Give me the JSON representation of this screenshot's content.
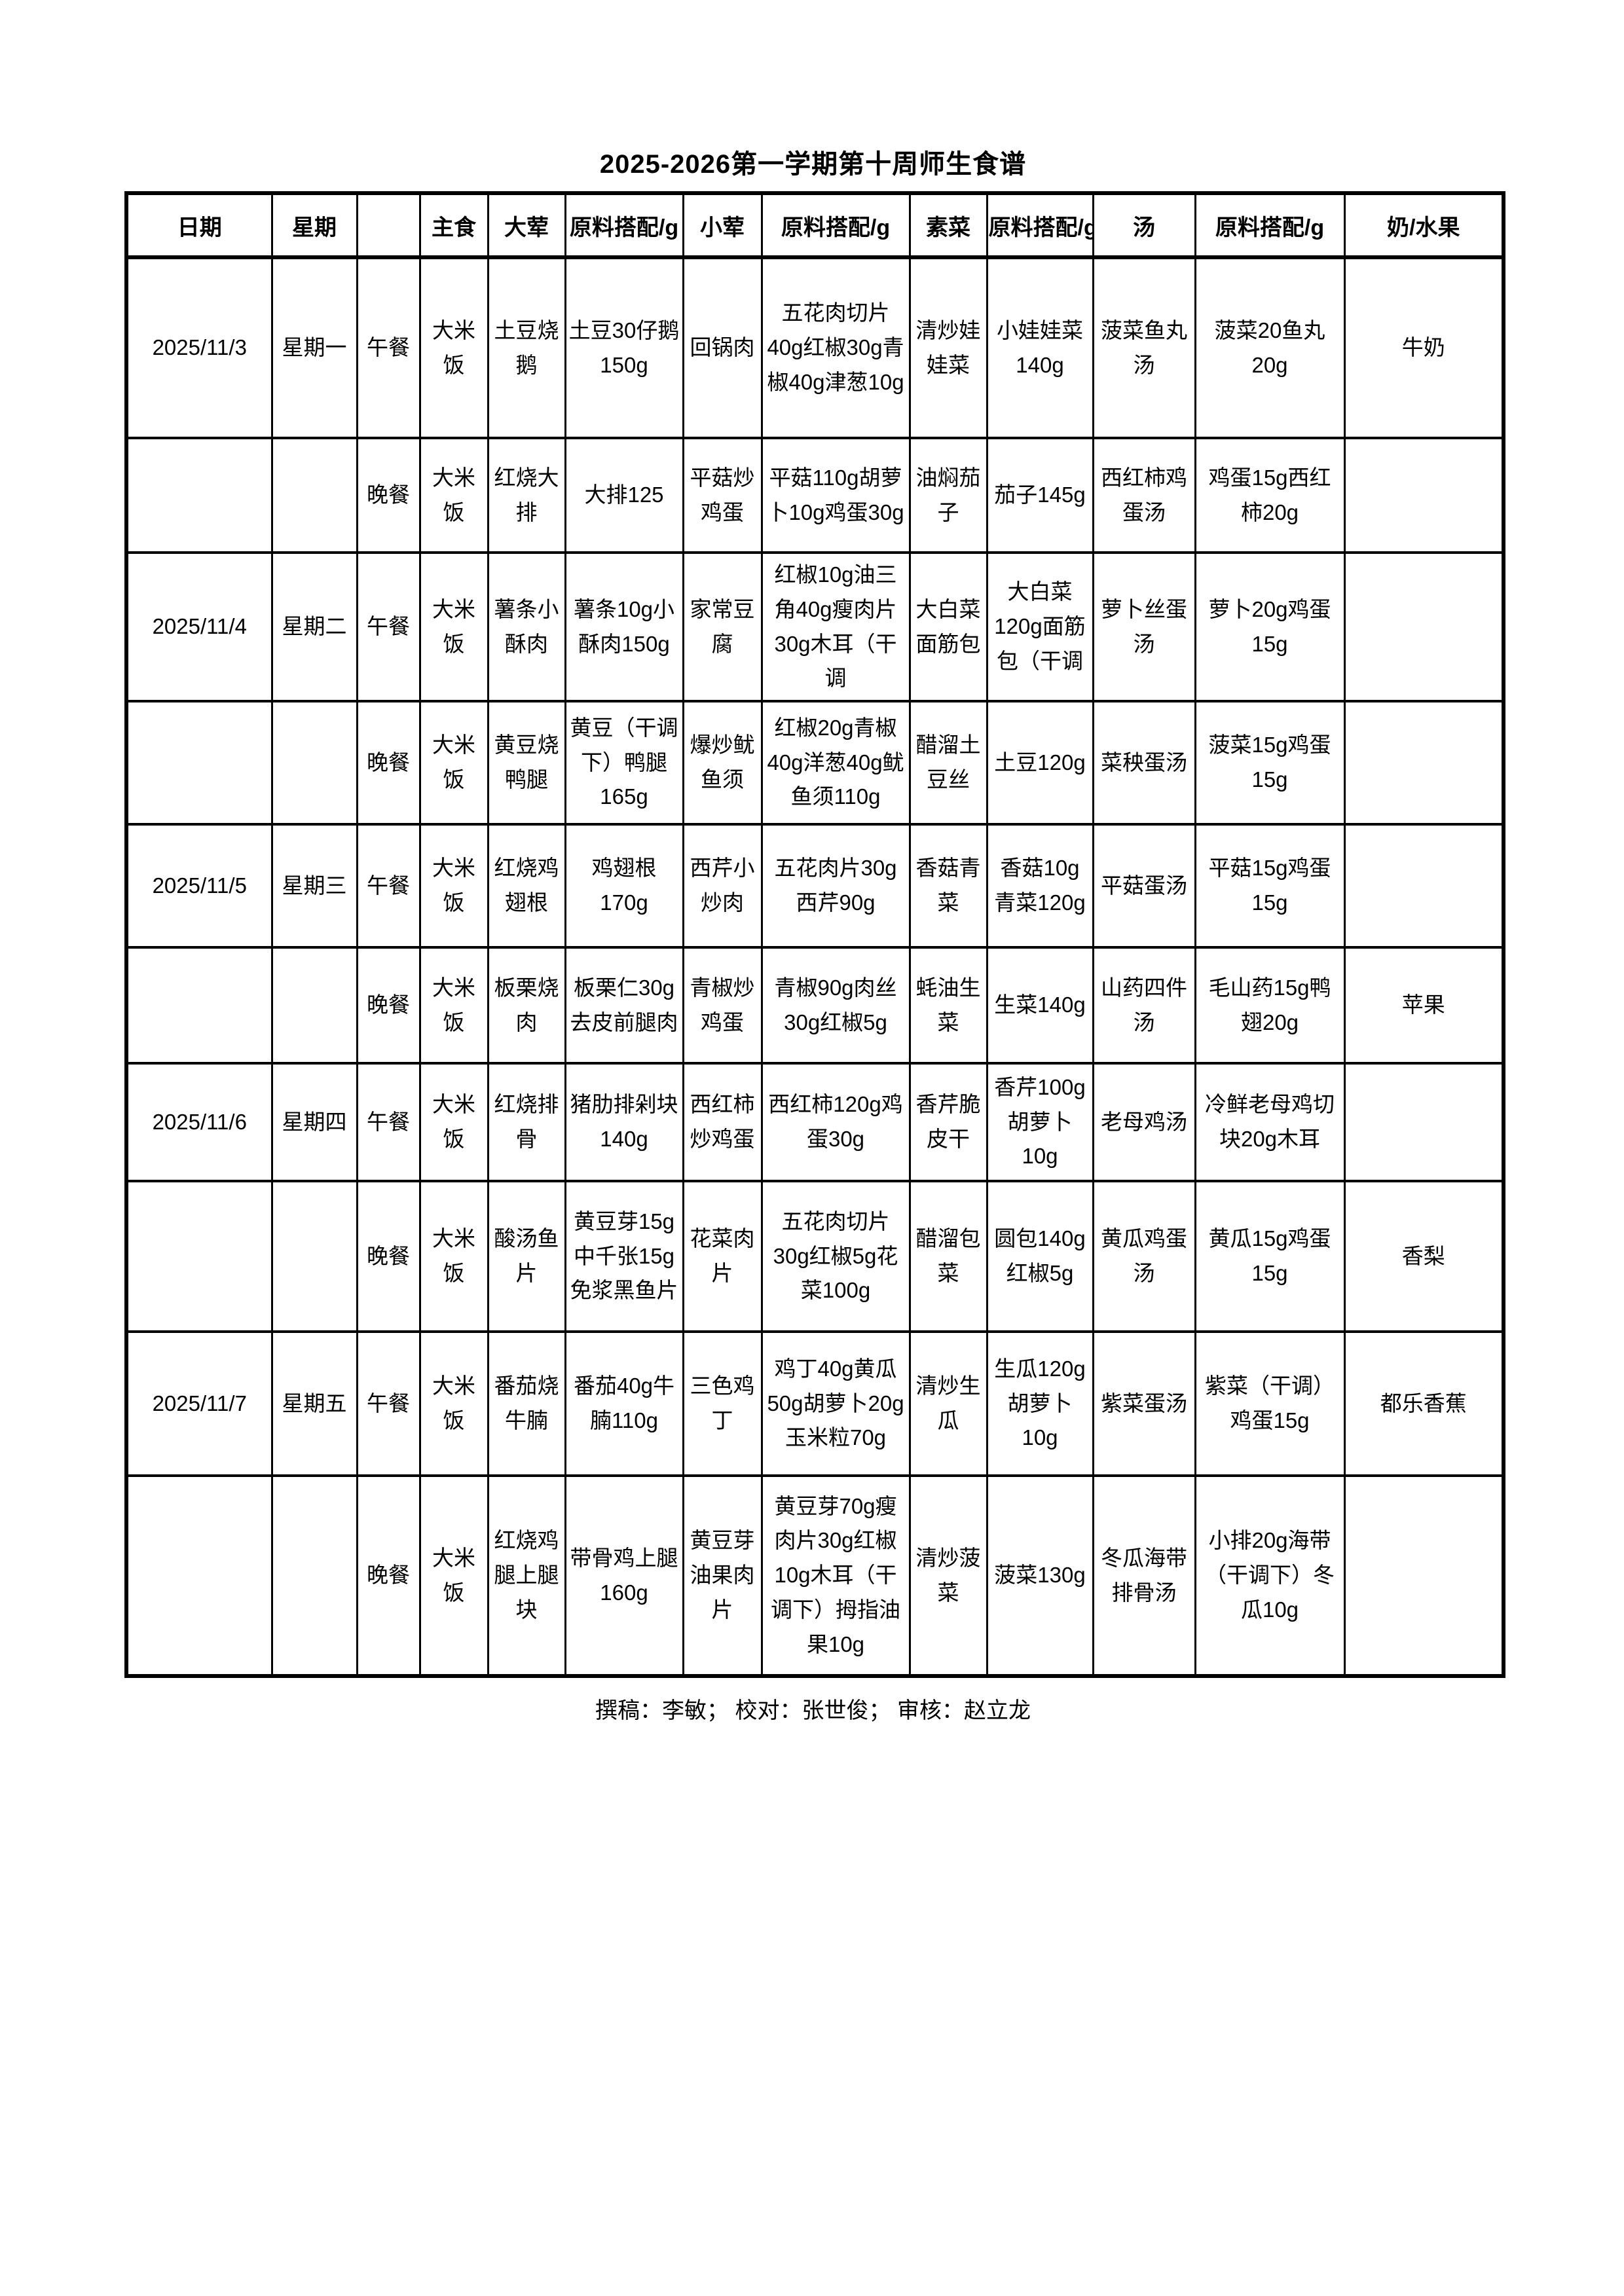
{
  "title": "2025-2026第一学期第十周师生食谱",
  "columns": [
    "日期",
    "星期",
    "",
    "主食",
    "大荤",
    "原料搭配/g",
    "小荤",
    "原料搭配/g",
    "素菜",
    "原料搭配/g",
    "汤",
    "原料搭配/g",
    "奶/水果"
  ],
  "rows": [
    {
      "date": "2025/11/3",
      "week": "星期一",
      "meal": "午餐",
      "staple": "大米饭",
      "main": "土豆烧鹅",
      "main_ing": "土豆30仔鹅150g",
      "small": "回锅肉",
      "small_ing": "五花肉切片40g红椒30g青椒40g津葱10g",
      "veg": "清炒娃娃菜",
      "veg_ing": "小娃娃菜140g",
      "soup": "菠菜鱼丸汤",
      "soup_ing": "菠菜20鱼丸20g",
      "extra": "牛奶"
    },
    {
      "date": "",
      "week": "",
      "meal": "晚餐",
      "staple": "大米饭",
      "main": "红烧大排",
      "main_ing": "大排125",
      "small": "平菇炒鸡蛋",
      "small_ing": "平菇110g胡萝卜10g鸡蛋30g",
      "veg": "油焖茄子",
      "veg_ing": "茄子145g",
      "soup": "西红柿鸡蛋汤",
      "soup_ing": "鸡蛋15g西红柿20g",
      "extra": ""
    },
    {
      "date": "2025/11/4",
      "week": "星期二",
      "meal": "午餐",
      "staple": "大米饭",
      "main": "薯条小酥肉",
      "main_ing": "薯条10g小酥肉150g",
      "small": "家常豆腐",
      "small_ing": "红椒10g油三角40g瘦肉片30g木耳（干调",
      "veg": "大白菜面筋包",
      "veg_ing": "大白菜120g面筋包（干调",
      "soup": "萝卜丝蛋汤",
      "soup_ing": "萝卜20g鸡蛋15g",
      "extra": ""
    },
    {
      "date": "",
      "week": "",
      "meal": "晚餐",
      "staple": "大米饭",
      "main": "黄豆烧鸭腿",
      "main_ing": "黄豆（干调下）鸭腿165g",
      "small": "爆炒鱿鱼须",
      "small_ing": "红椒20g青椒40g洋葱40g鱿鱼须110g",
      "veg": "醋溜土豆丝",
      "veg_ing": "土豆120g",
      "soup": "菜秧蛋汤",
      "soup_ing": "菠菜15g鸡蛋15g",
      "extra": ""
    },
    {
      "date": "2025/11/5",
      "week": "星期三",
      "meal": "午餐",
      "staple": "大米饭",
      "main": "红烧鸡翅根",
      "main_ing": "鸡翅根170g",
      "small": "西芹小炒肉",
      "small_ing": "五花肉片30g西芹90g",
      "veg": "香菇青菜",
      "veg_ing": "香菇10g青菜120g",
      "soup": "平菇蛋汤",
      "soup_ing": "平菇15g鸡蛋15g",
      "extra": ""
    },
    {
      "date": "",
      "week": "",
      "meal": "晚餐",
      "staple": "大米饭",
      "main": "板栗烧肉",
      "main_ing": "板栗仁30g去皮前腿肉",
      "small": "青椒炒鸡蛋",
      "small_ing": "青椒90g肉丝30g红椒5g",
      "veg": "蚝油生菜",
      "veg_ing": "生菜140g",
      "soup": "山药四件汤",
      "soup_ing": "毛山药15g鸭翅20g",
      "extra": "苹果"
    },
    {
      "date": "2025/11/6",
      "week": "星期四",
      "meal": "午餐",
      "staple": "大米饭",
      "main": "红烧排骨",
      "main_ing": "猪肋排剁块140g",
      "small": "西红柿炒鸡蛋",
      "small_ing": "西红柿120g鸡蛋30g",
      "veg": "香芹脆皮干",
      "veg_ing": "香芹100g胡萝卜10g",
      "soup": "老母鸡汤",
      "soup_ing": "冷鲜老母鸡切块20g木耳",
      "extra": ""
    },
    {
      "date": "",
      "week": "",
      "meal": "晚餐",
      "staple": "大米饭",
      "main": "酸汤鱼片",
      "main_ing": "黄豆芽15g中千张15g免浆黑鱼片",
      "small": "花菜肉片",
      "small_ing": "五花肉切片30g红椒5g花菜100g",
      "veg": "醋溜包菜",
      "veg_ing": "圆包140g红椒5g",
      "soup": "黄瓜鸡蛋汤",
      "soup_ing": "黄瓜15g鸡蛋15g",
      "extra": "香梨"
    },
    {
      "date": "2025/11/7",
      "week": "星期五",
      "meal": "午餐",
      "staple": "大米饭",
      "main": "番茄烧牛腩",
      "main_ing": "番茄40g牛腩110g",
      "small": "三色鸡丁",
      "small_ing": "鸡丁40g黄瓜50g胡萝卜20g玉米粒70g",
      "veg": "清炒生瓜",
      "veg_ing": "生瓜120g胡萝卜10g",
      "soup": "紫菜蛋汤",
      "soup_ing": "紫菜（干调）鸡蛋15g",
      "extra": "都乐香蕉"
    },
    {
      "date": "",
      "week": "",
      "meal": "晚餐",
      "staple": "大米饭",
      "main": "红烧鸡腿上腿块",
      "main_ing": "带骨鸡上腿160g",
      "small": "黄豆芽油果肉片",
      "small_ing": "黄豆芽70g瘦肉片30g红椒10g木耳（干调下）拇指油果10g",
      "veg": "清炒菠菜",
      "veg_ing": "菠菜130g",
      "soup": "冬瓜海带排骨汤",
      "soup_ing": "小排20g海带（干调下）冬瓜10g",
      "extra": ""
    }
  ],
  "footer": "撰稿：李敏；  校对：张世俊；  审核：赵立龙"
}
